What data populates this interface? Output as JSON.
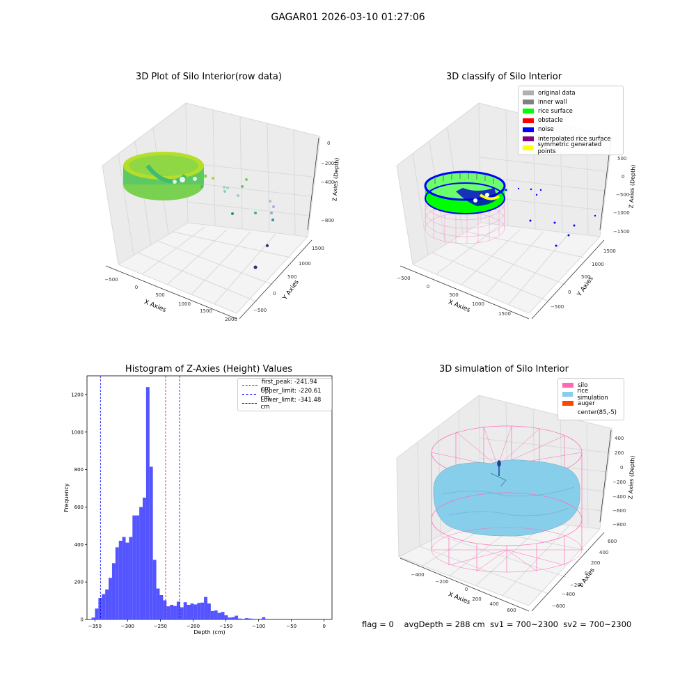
{
  "figure": {
    "suptitle": "GAGAR01 2026-03-10 01:27:06",
    "footer": {
      "flag": "flag = 0",
      "avg_depth": "avgDepth = 288 cm",
      "sv1": "sv1 = 700~2300",
      "sv2": "sv2 = 700~2300"
    },
    "colors": {
      "pane": "#f2f2f2",
      "grid": "#d9d9d9",
      "hist_bar": "#4c4cff",
      "silo_pink": "#ff69b4",
      "rice_blue": "#87ceeb"
    }
  },
  "chart_data": [
    {
      "id": "raw",
      "type": "scatter",
      "projection": "3d",
      "title": "3D Plot of Silo Interior(row data)",
      "xlabel": "X Axies",
      "ylabel": "Y Axies",
      "zlabel": "Z Axies (Depth)",
      "xticks": [
        "−500",
        "0",
        "500",
        "1000",
        "1500",
        "2000"
      ],
      "yticks": [
        "−500",
        "0",
        "500",
        "1000",
        "1500"
      ],
      "zticks": [
        "0",
        "−200",
        "−400",
        "−600",
        "−800"
      ],
      "colormap": "viridis (by depth)"
    },
    {
      "id": "classify",
      "type": "scatter",
      "projection": "3d",
      "title": "3D classify of Silo Interior",
      "xlabel": "X Axies",
      "ylabel": "Y Axies",
      "zlabel": "Z Axies (Depth)",
      "xticks": [
        "−500",
        "0",
        "500",
        "1000",
        "1500"
      ],
      "yticks": [
        "−500",
        "0",
        "500",
        "1000",
        "1500"
      ],
      "zticks": [
        "500",
        "0",
        "−500",
        "−1000",
        "−1500"
      ],
      "legend_position": "top-right",
      "legend": [
        {
          "label": "original data",
          "color": "#b0b0b0"
        },
        {
          "label": "inner wall",
          "color": "#808080"
        },
        {
          "label": "rice surface",
          "color": "#00ff00"
        },
        {
          "label": "obstacle",
          "color": "#ff0000"
        },
        {
          "label": "noise",
          "color": "#0000ff"
        },
        {
          "label": "interpolated rice surface",
          "color": "#800080"
        },
        {
          "label": "symmetric generated points",
          "color": "#ffff00"
        }
      ]
    },
    {
      "id": "hist",
      "type": "bar",
      "title": "Histogram of Z-Axies (Height) Values",
      "xlabel": "Depth (cm)",
      "ylabel": "Frequency",
      "xlim": [
        -362,
        12
      ],
      "ylim": [
        0,
        1300
      ],
      "xticks": [
        -350,
        -300,
        -250,
        -200,
        -150,
        -100,
        -50,
        0
      ],
      "yticks": [
        0,
        200,
        400,
        600,
        800,
        1000,
        1200
      ],
      "bin_width": 5.2,
      "bin_start": -355,
      "values": [
        10,
        58,
        115,
        135,
        160,
        222,
        300,
        385,
        420,
        440,
        410,
        440,
        555,
        555,
        600,
        650,
        1240,
        815,
        318,
        165,
        130,
        102,
        70,
        78,
        72,
        95,
        65,
        92,
        78,
        85,
        80,
        88,
        90,
        120,
        85,
        45,
        48,
        35,
        40,
        22,
        10,
        12,
        20,
        5,
        3,
        7,
        5,
        3,
        2,
        3,
        12
      ],
      "lines": [
        {
          "label": "first_peak: -241.94 cm",
          "x": -241.94,
          "color": "#ff0000"
        },
        {
          "label": "Upper_limit: -220.61 cm",
          "x": -220.61,
          "color": "#0000ff"
        },
        {
          "label": "Lower_limit: -341.48 cm",
          "x": -341.48,
          "color": "#0000ff"
        }
      ],
      "legend_position": "top-right"
    },
    {
      "id": "sim",
      "type": "area",
      "projection": "3d",
      "title": "3D simulation of Silo Interior",
      "xlabel": "X Axies",
      "ylabel": "Y Axies",
      "zlabel": "Z Axies (Depth)",
      "xticks": [
        "−400",
        "−200",
        "0",
        "200",
        "400",
        "600"
      ],
      "yticks": [
        "600",
        "400",
        "200",
        "0",
        "−200",
        "−400",
        "−600"
      ],
      "zticks": [
        "400",
        "200",
        "0",
        "−200",
        "−400",
        "−600",
        "−800"
      ],
      "legend_position": "top-right",
      "legend": [
        {
          "label": "silo",
          "color": "#ff69b4"
        },
        {
          "label": "rice simulation",
          "color": "#87ceeb"
        },
        {
          "label": "auger",
          "color": "#ff4500"
        },
        {
          "label": "center(85,-5)",
          "color": "#ffffff"
        }
      ]
    }
  ]
}
